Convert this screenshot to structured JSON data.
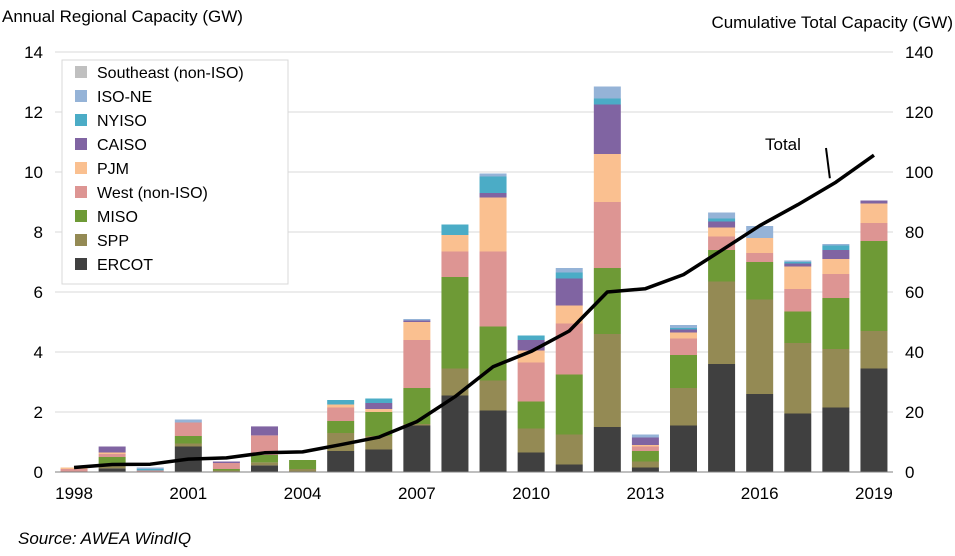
{
  "chart_data": {
    "type": "bar",
    "stacked": true,
    "left_axis_title": "Annual Regional Capacity (GW)",
    "right_axis_title": "Cumulative Total Capacity (GW)",
    "source": "Source: AWEA WindIQ",
    "annotation": "Total",
    "years": [
      1998,
      1999,
      2000,
      2001,
      2002,
      2003,
      2004,
      2005,
      2006,
      2007,
      2008,
      2009,
      2010,
      2011,
      2012,
      2013,
      2014,
      2015,
      2016,
      2017,
      2018,
      2019
    ],
    "x_tick_labels": [
      "1998",
      "2001",
      "2004",
      "2007",
      "2010",
      "2013",
      "2016",
      "2019"
    ],
    "left_ylim": [
      0,
      14
    ],
    "left_yticks": [
      "0",
      "2",
      "4",
      "6",
      "8",
      "10",
      "12",
      "14"
    ],
    "right_ylim": [
      0,
      140
    ],
    "right_yticks": [
      "0",
      "20",
      "40",
      "60",
      "80",
      "100",
      "120",
      "140"
    ],
    "series": [
      {
        "name": "ERCOT",
        "color": "#404040",
        "values": [
          0.0,
          0.12,
          0.0,
          0.85,
          0.0,
          0.22,
          0.0,
          0.7,
          0.75,
          1.55,
          2.55,
          2.05,
          0.65,
          0.25,
          1.5,
          0.15,
          1.55,
          3.6,
          2.6,
          1.95,
          2.15,
          3.45
        ]
      },
      {
        "name": "SPP",
        "color": "#948a54",
        "values": [
          0.0,
          0.13,
          0.0,
          0.1,
          0.05,
          0.1,
          0.1,
          0.6,
          0.45,
          0.05,
          0.9,
          1.0,
          0.8,
          1.0,
          3.1,
          0.2,
          1.25,
          2.75,
          3.15,
          2.35,
          1.95,
          1.25
        ]
      },
      {
        "name": "MISO",
        "color": "#6e9a36",
        "values": [
          0.0,
          0.25,
          0.0,
          0.25,
          0.05,
          0.25,
          0.3,
          0.4,
          0.8,
          1.2,
          3.05,
          1.8,
          0.9,
          2.0,
          2.2,
          0.35,
          1.1,
          1.05,
          1.25,
          1.05,
          1.7,
          3.0
        ]
      },
      {
        "name": "West (non-ISO)",
        "color": "#dd9593",
        "values": [
          0.1,
          0.1,
          0.05,
          0.45,
          0.2,
          0.65,
          0.0,
          0.45,
          0.0,
          1.6,
          0.85,
          2.5,
          1.3,
          1.7,
          2.2,
          0.15,
          0.55,
          0.45,
          0.3,
          0.75,
          0.8,
          0.6
        ]
      },
      {
        "name": "PJM",
        "color": "#fac090",
        "values": [
          0.05,
          0.05,
          0.0,
          0.0,
          0.0,
          0.0,
          0.0,
          0.1,
          0.1,
          0.6,
          0.55,
          1.8,
          0.4,
          0.6,
          1.6,
          0.05,
          0.2,
          0.3,
          0.5,
          0.75,
          0.5,
          0.65
        ]
      },
      {
        "name": "CAISO",
        "color": "#8064a2",
        "values": [
          0.0,
          0.2,
          0.0,
          0.0,
          0.05,
          0.3,
          0.0,
          0.0,
          0.2,
          0.05,
          0.0,
          0.15,
          0.35,
          0.9,
          1.65,
          0.25,
          0.1,
          0.2,
          0.0,
          0.1,
          0.3,
          0.1
        ]
      },
      {
        "name": "NYISO",
        "color": "#4bacc6",
        "values": [
          0.0,
          0.0,
          0.05,
          0.0,
          0.0,
          0.0,
          0.0,
          0.15,
          0.15,
          0.0,
          0.35,
          0.55,
          0.15,
          0.2,
          0.2,
          0.0,
          0.05,
          0.1,
          0.0,
          0.05,
          0.15,
          0.0
        ]
      },
      {
        "name": "ISO-NE",
        "color": "#95b3d7",
        "values": [
          0.0,
          0.0,
          0.05,
          0.1,
          0.0,
          0.0,
          0.0,
          0.0,
          0.0,
          0.05,
          0.0,
          0.1,
          0.0,
          0.15,
          0.4,
          0.1,
          0.1,
          0.2,
          0.4,
          0.05,
          0.05,
          0.0
        ]
      },
      {
        "name": "Southeast (non-ISO)",
        "color": "#c0c0c0",
        "values": [
          0.0,
          0.0,
          0.0,
          0.0,
          0.0,
          0.0,
          0.0,
          0.0,
          0.0,
          0.0,
          0.0,
          0.0,
          0.0,
          0.0,
          0.0,
          0.0,
          0.0,
          0.0,
          0.0,
          0.0,
          0.0,
          0.0
        ]
      }
    ],
    "total_line": {
      "name": "Total",
      "color": "#000000",
      "axis": "right",
      "values": [
        1.5,
        2.5,
        2.6,
        4.3,
        4.7,
        6.4,
        6.7,
        9.1,
        11.6,
        16.8,
        25.1,
        35.1,
        40.2,
        47.0,
        60.0,
        61.1,
        65.8,
        73.9,
        82.1,
        89.1,
        96.6,
        105.6
      ]
    },
    "legend_order": [
      "Southeast (non-ISO)",
      "ISO-NE",
      "NYISO",
      "CAISO",
      "PJM",
      "West (non-ISO)",
      "MISO",
      "SPP",
      "ERCOT"
    ],
    "legend_position": "top-left",
    "grid": true
  }
}
